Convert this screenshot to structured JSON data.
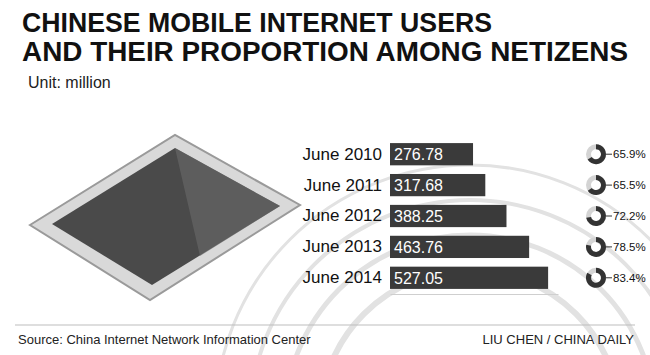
{
  "chart_data": [
    {
      "type": "bar",
      "orientation": "horizontal",
      "title": [
        "CHINESE MOBILE INTERNET USERS",
        "AND THEIR PROPORTION AMONG NETIZENS"
      ],
      "subtitle": "Unit: million",
      "categories": [
        "June 2010",
        "June 2011",
        "June 2012",
        "June 2013",
        "June 2014"
      ],
      "values": [
        276.78,
        317.68,
        388.25,
        463.76,
        527.05
      ],
      "color": "#3a3a3a",
      "xlim": [
        0,
        560
      ],
      "tick_labels": false,
      "data_labels": true,
      "annotations": [
        "Source: China Internet Network Information Center",
        "LIU CHEN / CHINA DAILY"
      ]
    },
    {
      "type": "donut",
      "values": [
        65.9,
        65.5,
        72.2,
        78.5,
        83.4
      ],
      "value_labels": [
        "65.9%",
        "65.5%",
        "72.2%",
        "78.5%",
        "83.4%"
      ],
      "ylim": [
        0,
        100
      ],
      "color": "#333333",
      "data_labels": true
    }
  ]
}
